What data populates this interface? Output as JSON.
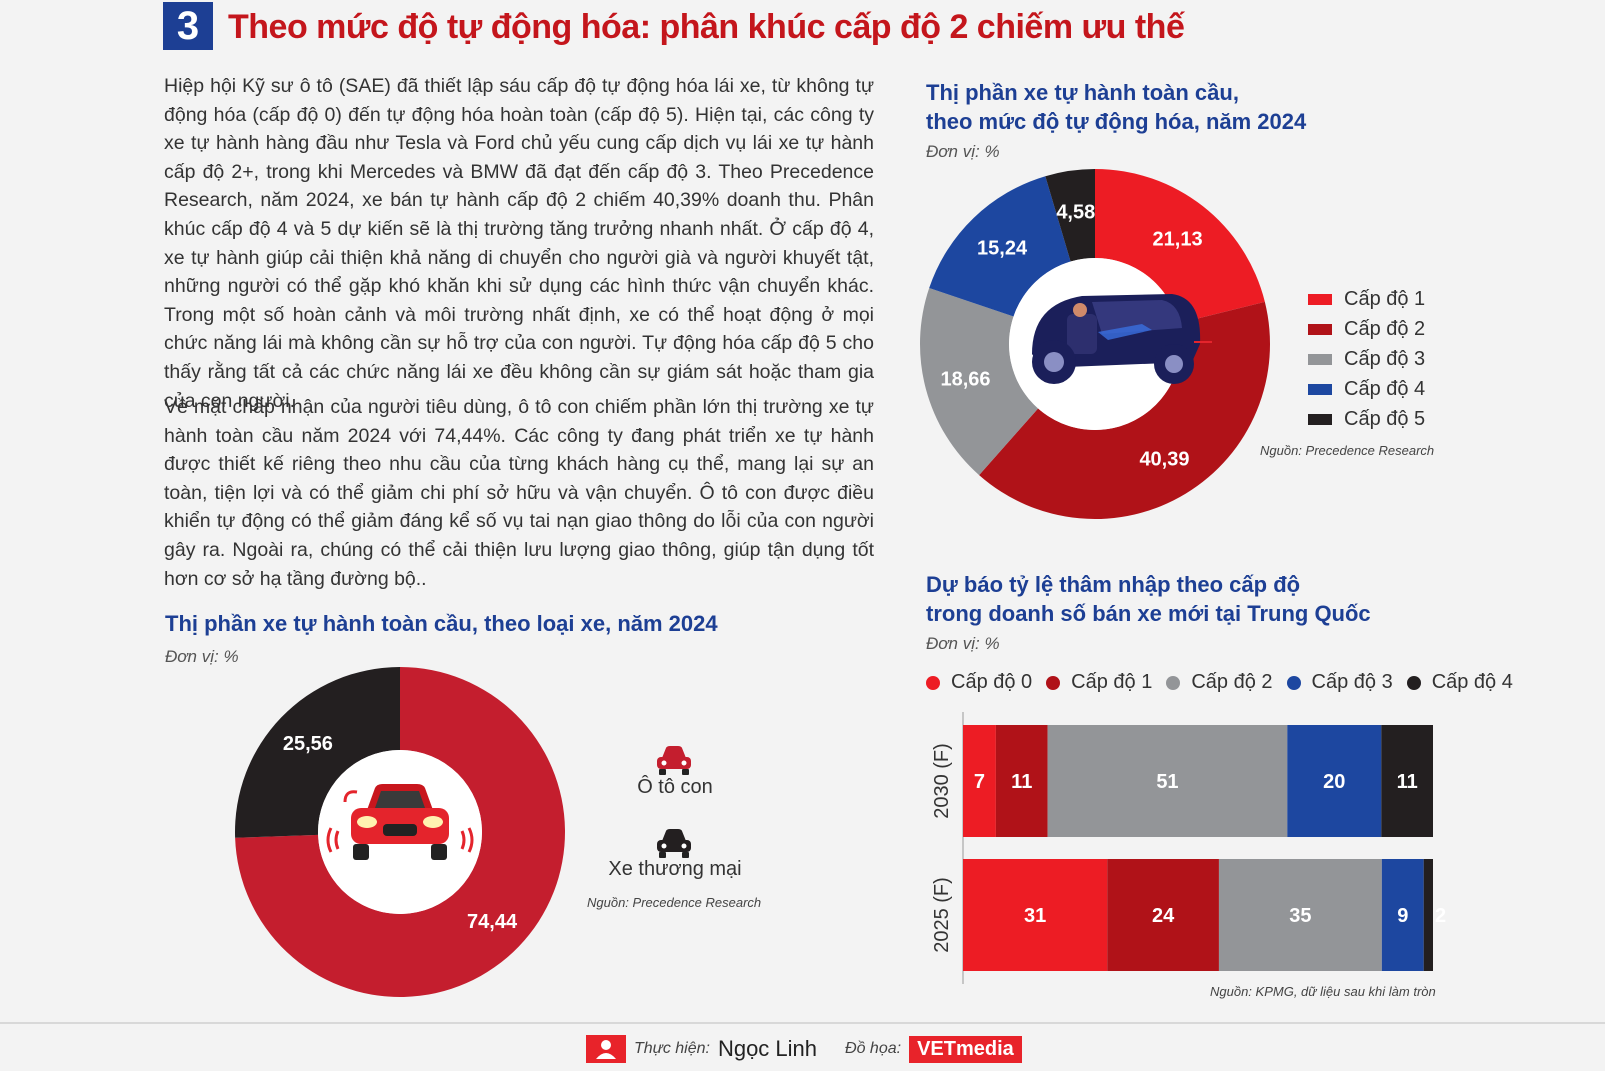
{
  "header": {
    "section_number": "3",
    "title": "Theo mức độ tự động hóa: phân khúc cấp độ 2 chiếm ưu thế"
  },
  "body": {
    "paragraph_1": "Hiệp hội Kỹ sư ô tô (SAE) đã thiết lập sáu cấp độ tự động hóa lái xe, từ không tự động hóa (cấp độ 0) đến tự động hóa hoàn toàn (cấp độ 5). Hiện tại, các công ty xe tự hành hàng đầu như Tesla và Ford chủ yếu cung cấp dịch vụ lái xe tự hành cấp độ 2+, trong khi Mercedes và BMW đã đạt đến cấp độ 3. Theo Precedence Research, năm 2024, xe bán tự hành cấp độ 2 chiếm 40,39% doanh thu. Phân khúc cấp độ 4 và 5 dự kiến sẽ là thị trường tăng trưởng nhanh nhất. Ở cấp độ 4, xe tự hành giúp cải thiện khả năng di chuyển cho người già và người khuyết tật, những người có thể gặp khó khăn khi sử dụng các hình thức vận chuyển khác. Trong một số hoàn cảnh và môi trường nhất định, xe có thể hoạt động ở mọi chức năng lái mà không cần sự hỗ trợ của con người. Tự động hóa cấp độ 5 cho thấy rằng tất cả các chức năng lái xe đều không cần sự giám sát hoặc tham gia của con người.",
    "paragraph_2": "Về mặt chấp nhận của người tiêu dùng, ô tô con chiếm phần lớn thị trường xe tự hành toàn cầu năm 2024 với 74,44%. Các công ty đang phát triển xe tự hành được thiết kế riêng theo nhu cầu của từng khách hàng cụ thể, mang lại sự an toàn, tiện lợi và có thể giảm chi phí sở hữu và vận chuyển. Ô tô con được điều khiển tự động có thể giảm đáng kể số vụ tai nạn giao thông do lỗi của con người gây ra. Ngoài ra, chúng có thể cải thiện lưu lượng giao thông, giúp tận dụng tốt hơn cơ sở hạ tầng đường bộ.."
  },
  "colors": {
    "red": "#ed1c24",
    "dark_red": "#b01218",
    "gray": "#939598",
    "blue": "#1d47a0",
    "black": "#231f20",
    "title_blue": "#1d3f94",
    "title_red": "#c4161c"
  },
  "chart_data": [
    {
      "id": "vehicle-type",
      "type": "pie",
      "donut": true,
      "title": "Thị phần xe tự hành toàn cầu, theo loại xe, năm 2024",
      "unit": "Đơn vị: %",
      "categories": [
        "Ô tô con",
        "Xe thương mại"
      ],
      "values": [
        74.44,
        25.56
      ],
      "value_labels": [
        "74,44",
        "25,56"
      ],
      "colors": [
        "#c41e2e",
        "#231f20"
      ],
      "legend_icons": [
        "car-icon",
        "car-icon"
      ],
      "source": "Nguồn: Precedence Research"
    },
    {
      "id": "automation-level",
      "type": "pie",
      "donut": true,
      "title": "Thị phần xe tự hành toàn cầu, theo mức độ tự động hóa, năm 2024",
      "title_lines": [
        "Thị phần xe tự hành toàn cầu,",
        "theo mức độ tự động hóa, năm 2024"
      ],
      "unit": "Đơn vị: %",
      "categories": [
        "Cấp độ 1",
        "Cấp độ 2",
        "Cấp độ 3",
        "Cấp độ 4",
        "Cấp độ 5"
      ],
      "values": [
        21.13,
        40.39,
        18.66,
        15.24,
        4.58
      ],
      "value_labels": [
        "21,13",
        "40,39",
        "18,66",
        "15,24",
        "4,58"
      ],
      "colors": [
        "#ed1c24",
        "#b01218",
        "#939598",
        "#1d47a0",
        "#231f20"
      ],
      "source": "Nguồn: Precedence Research"
    },
    {
      "id": "china-penetration",
      "type": "bar",
      "orientation": "horizontal",
      "stacked": true,
      "title": "Dự báo tỷ lệ thâm nhập theo cấp độ trong doanh số bán xe mới tại Trung Quốc",
      "title_lines": [
        "Dự báo tỷ lệ thâm nhập theo cấp độ",
        "trong doanh số bán xe mới tại Trung Quốc"
      ],
      "unit": "Đơn vị: %",
      "categories": [
        "2030 (F)",
        "2025 (F)"
      ],
      "series": [
        {
          "name": "Cấp độ 0",
          "color": "#ed1c24",
          "values": [
            7,
            31
          ]
        },
        {
          "name": "Cấp độ 1",
          "color": "#b01218",
          "values": [
            11,
            24
          ]
        },
        {
          "name": "Cấp độ 2",
          "color": "#939598",
          "values": [
            51,
            35
          ]
        },
        {
          "name": "Cấp độ 3",
          "color": "#1d47a0",
          "values": [
            20,
            9
          ]
        },
        {
          "name": "Cấp độ 4",
          "color": "#231f20",
          "values": [
            11,
            2
          ]
        }
      ],
      "xlim": [
        0,
        100
      ],
      "source": "Nguồn: KPMG, dữ liệu sau khi làm tròn"
    }
  ],
  "footer": {
    "author_label": "Thực hiện:",
    "author_name": "Ngọc Linh",
    "graphics_label": "Đồ họa:",
    "brand": "VETmedia"
  }
}
